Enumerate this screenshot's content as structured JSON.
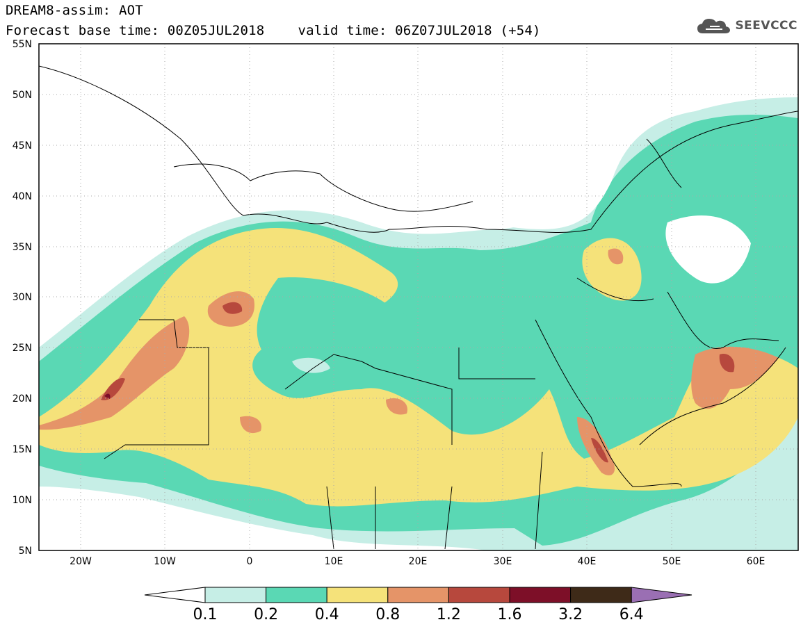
{
  "title": {
    "line1": "DREAM8-assim: AOT",
    "base_time": "Forecast base time: 00Z05JUL2018",
    "valid_time": "valid time: 06Z07JUL2018 (+54)"
  },
  "logo": {
    "icon": "cloud-icon",
    "text": "SEEVCCC"
  },
  "map": {
    "lon_range": [
      -25,
      65
    ],
    "lat_range": [
      5,
      55
    ],
    "x_ticks": [
      "20W",
      "10W",
      "0",
      "10E",
      "20E",
      "30E",
      "40E",
      "50E",
      "60E"
    ],
    "y_ticks": [
      "5N",
      "10N",
      "15N",
      "20N",
      "25N",
      "30N",
      "35N",
      "40N",
      "45N",
      "50N",
      "55N"
    ]
  },
  "colorbar": {
    "levels": [
      "0.1",
      "0.2",
      "0.4",
      "0.8",
      "1.2",
      "1.6",
      "3.2",
      "6.4"
    ],
    "colors": [
      "#c6eee6",
      "#5ad8b4",
      "#f5e27a",
      "#e59468",
      "#b7483d",
      "#7d0f28",
      "#3e2a18",
      "#9a6fb3"
    ],
    "under_color": "#ffffff"
  }
}
